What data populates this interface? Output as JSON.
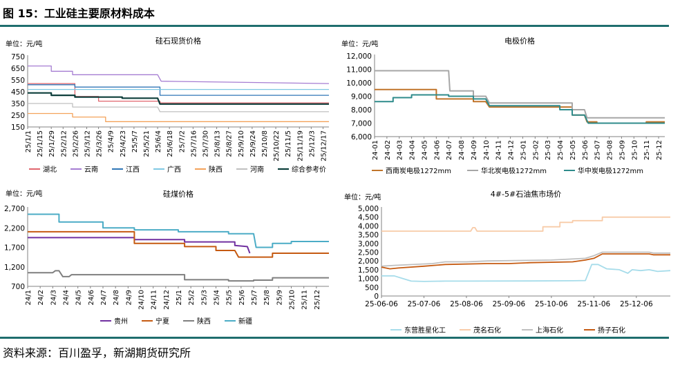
{
  "figure_title": "图 15：工业硅主要原材料成本",
  "source": "资料来源：百川盈孚，新湖期货研究所",
  "colors": {
    "rule": "#1f6e6e"
  },
  "chart_data": [
    {
      "id": "silicon-ore",
      "type": "line",
      "title": "硅石现货价格",
      "unit": "单位：元/吨",
      "ylim": [
        150,
        750
      ],
      "yticks": [
        150,
        250,
        350,
        450,
        550,
        650,
        750
      ],
      "xticks": [
        "25/1/1",
        "25/1/15",
        "25/1/29",
        "25/2/12",
        "25/2/26",
        "25/3/12",
        "25/3/26",
        "25/4/9",
        "25/4/23",
        "25/5/7",
        "25/5/21",
        "25/6/4",
        "25/6/18",
        "25/7/2",
        "25/7/16",
        "25/7/30",
        "25/8/13",
        "25/8/27",
        "25/9/10",
        "25/9/24",
        "25/10/8",
        "25/10/22",
        "25/11/5",
        "25/11/19",
        "25/12/3",
        "25/12/17"
      ],
      "xrange": [
        0,
        25.5
      ],
      "legend_position": "bottom",
      "series": [
        {
          "name": "湖北",
          "color": "#e0646c",
          "width": 1.3,
          "points": [
            [
              0,
              520
            ],
            [
              4,
              520
            ],
            [
              4,
              410
            ],
            [
              6,
              410
            ],
            [
              6,
              370
            ],
            [
              11.2,
              370
            ],
            [
              11.2,
              355
            ],
            [
              25.5,
              355
            ]
          ]
        },
        {
          "name": "云南",
          "color": "#a57cd2",
          "width": 1.3,
          "points": [
            [
              0,
              670
            ],
            [
              2,
              670
            ],
            [
              2,
              625
            ],
            [
              3.8,
              625
            ],
            [
              3.8,
              595
            ],
            [
              11,
              595
            ],
            [
              11.3,
              540
            ],
            [
              25.5,
              520
            ]
          ]
        },
        {
          "name": "江西",
          "color": "#2e75b6",
          "width": 1.3,
          "points": [
            [
              0,
              510
            ],
            [
              4,
              510
            ],
            [
              4,
              490
            ],
            [
              11.2,
              490
            ],
            [
              11.2,
              420
            ],
            [
              25.5,
              420
            ]
          ]
        },
        {
          "name": "广西",
          "color": "#7ec8e3",
          "width": 1.3,
          "points": [
            [
              0,
              470
            ],
            [
              25.5,
              470
            ]
          ]
        },
        {
          "name": "陕西",
          "color": "#f4a259",
          "width": 1.3,
          "points": [
            [
              0,
              265
            ],
            [
              3.8,
              265
            ],
            [
              3.8,
              235
            ],
            [
              6.6,
              235
            ],
            [
              6.6,
              195
            ],
            [
              25.5,
              195
            ]
          ]
        },
        {
          "name": "河南",
          "color": "#bfbfbf",
          "width": 1.3,
          "points": [
            [
              0,
              350
            ],
            [
              3.8,
              350
            ],
            [
              3.8,
              320
            ],
            [
              11,
              320
            ],
            [
              11.2,
              280
            ],
            [
              25.5,
              280
            ]
          ]
        },
        {
          "name": "综合参考价",
          "color": "#0b3d3a",
          "width": 2.2,
          "points": [
            [
              0,
              440
            ],
            [
              2,
              440
            ],
            [
              2,
              420
            ],
            [
              4,
              420
            ],
            [
              4,
              405
            ],
            [
              8,
              405
            ],
            [
              8,
              395
            ],
            [
              11,
              395
            ],
            [
              11.2,
              345
            ],
            [
              25.5,
              345
            ]
          ]
        }
      ]
    },
    {
      "id": "electrode",
      "type": "line",
      "title": "电极价格",
      "unit": "单位：元/吨",
      "ylim": [
        6000,
        12000
      ],
      "yticks": [
        6000,
        7000,
        8000,
        9000,
        10000,
        11000,
        12000
      ],
      "xticks": [
        "24-01",
        "24-02",
        "24-03",
        "24-04",
        "24-05",
        "24-06",
        "24-07",
        "24-08",
        "24-09",
        "24-10",
        "24-11",
        "24-12",
        "25-01",
        "25-02",
        "25-03",
        "25-04",
        "25-05",
        "25-06",
        "25-07",
        "25-08",
        "25-09",
        "25-10",
        "25-11",
        "25-12"
      ],
      "xrange": [
        0,
        23.5
      ],
      "legend_position": "bottom",
      "series": [
        {
          "name": "西南炭电极1272mm",
          "color": "#c0742a",
          "width": 2,
          "points": [
            [
              0,
              9500
            ],
            [
              5,
              9500
            ],
            [
              5,
              8800
            ],
            [
              8,
              8800
            ],
            [
              8,
              8600
            ],
            [
              9,
              8600
            ],
            [
              9.3,
              8200
            ],
            [
              16,
              8200
            ],
            [
              16,
              7600
            ],
            [
              17,
              7600
            ],
            [
              17.2,
              7100
            ],
            [
              18,
              7100
            ],
            [
              18,
              7000
            ],
            [
              22,
              7000
            ],
            [
              22,
              7100
            ],
            [
              23.5,
              7100
            ]
          ]
        },
        {
          "name": "华北炭电极1272mm",
          "color": "#a6a6a6",
          "width": 2,
          "points": [
            [
              0,
              10900
            ],
            [
              6,
              10900
            ],
            [
              6.1,
              9400
            ],
            [
              8,
              9400
            ],
            [
              8,
              9000
            ],
            [
              9,
              9000
            ],
            [
              9.3,
              8500
            ],
            [
              16,
              8500
            ],
            [
              16,
              8000
            ],
            [
              17,
              8000
            ],
            [
              17.2,
              7400
            ],
            [
              23.5,
              7400
            ]
          ]
        },
        {
          "name": "华中炭电极1272mm",
          "color": "#2e8b8b",
          "width": 2,
          "points": [
            [
              0,
              8600
            ],
            [
              1.5,
              8600
            ],
            [
              1.5,
              8900
            ],
            [
              3,
              8900
            ],
            [
              3,
              9100
            ],
            [
              6,
              9100
            ],
            [
              6,
              9000
            ],
            [
              8,
              9000
            ],
            [
              8,
              8800
            ],
            [
              9,
              8800
            ],
            [
              9.3,
              8300
            ],
            [
              15,
              8300
            ],
            [
              15,
              8000
            ],
            [
              16,
              8000
            ],
            [
              16,
              7600
            ],
            [
              17,
              7600
            ],
            [
              17.3,
              7000
            ],
            [
              23.5,
              7000
            ]
          ]
        }
      ]
    },
    {
      "id": "coal",
      "type": "line",
      "title": "硅煤价格",
      "unit": "单位：元/吨",
      "ylim": [
        700,
        2700
      ],
      "yticks": [
        700,
        1200,
        1700,
        2200,
        2700
      ],
      "xticks": [
        "24/1",
        "24/2",
        "24/3",
        "24/4",
        "24/5",
        "24/6",
        "24/7",
        "24/8",
        "24/9",
        "24/10",
        "24/11",
        "24/12",
        "25/1",
        "25/2",
        "25/3",
        "25/4",
        "25/5",
        "25/6",
        "25/7",
        "25/8",
        "25/9",
        "25/10",
        "25/11",
        "25/12"
      ],
      "xrange": [
        0,
        24
      ],
      "legend_position": "bottom",
      "series": [
        {
          "name": "贵州",
          "color": "#7030a0",
          "width": 2,
          "points": [
            [
              0,
              1950
            ],
            [
              8.5,
              1950
            ],
            [
              8.5,
              1900
            ],
            [
              12.5,
              1900
            ],
            [
              12.5,
              1840
            ],
            [
              16.5,
              1840
            ],
            [
              16.5,
              1750
            ],
            [
              17.5,
              1720
            ],
            [
              17.7,
              1550
            ]
          ]
        },
        {
          "name": "宁夏",
          "color": "#c55a11",
          "width": 2,
          "points": [
            [
              0,
              2100
            ],
            [
              8.5,
              2100
            ],
            [
              8.5,
              1800
            ],
            [
              12.5,
              1800
            ],
            [
              12.5,
              1720
            ],
            [
              15,
              1720
            ],
            [
              15,
              1620
            ],
            [
              16.5,
              1620
            ],
            [
              16.8,
              1450
            ],
            [
              19.5,
              1450
            ],
            [
              19.5,
              1550
            ],
            [
              24,
              1550
            ]
          ]
        },
        {
          "name": "陕西",
          "color": "#7f7f7f",
          "width": 2,
          "points": [
            [
              0,
              1050
            ],
            [
              2,
              1050
            ],
            [
              2.2,
              1100
            ],
            [
              2.5,
              1100
            ],
            [
              2.8,
              950
            ],
            [
              3.3,
              950
            ],
            [
              3.5,
              1000
            ],
            [
              12.5,
              1000
            ],
            [
              12.5,
              870
            ],
            [
              16,
              870
            ],
            [
              16,
              840
            ],
            [
              18,
              840
            ],
            [
              18,
              860
            ],
            [
              19.5,
              860
            ],
            [
              19.5,
              920
            ],
            [
              24,
              920
            ]
          ]
        },
        {
          "name": "新疆",
          "color": "#4bacc6",
          "width": 2,
          "points": [
            [
              0,
              2550
            ],
            [
              2.5,
              2550
            ],
            [
              2.5,
              2350
            ],
            [
              6,
              2350
            ],
            [
              6,
              2200
            ],
            [
              8.5,
              2200
            ],
            [
              8.5,
              2150
            ],
            [
              12,
              2150
            ],
            [
              12,
              2100
            ],
            [
              16,
              2100
            ],
            [
              16,
              2050
            ],
            [
              18,
              2050
            ],
            [
              18.2,
              1700
            ],
            [
              19.5,
              1700
            ],
            [
              19.5,
              1800
            ],
            [
              21,
              1800
            ],
            [
              21,
              1850
            ],
            [
              24,
              1850
            ]
          ]
        }
      ]
    },
    {
      "id": "petcoke",
      "type": "line",
      "title": "4#-5#石油焦市场价",
      "unit": "单位：元/吨",
      "ylim": [
        0,
        5000
      ],
      "yticks": [
        0,
        500,
        1000,
        1500,
        2000,
        2500,
        3000,
        3500,
        4000,
        4500,
        5000
      ],
      "xticks": [
        "25-06-06",
        "25-07-06",
        "25-08-06",
        "25-09-06",
        "25-10-06",
        "25-11-06",
        "25-12-06"
      ],
      "xrange": [
        0,
        6.8
      ],
      "legend_position": "bottom",
      "series": [
        {
          "name": "东营胜星化工",
          "color": "#a6dcea",
          "width": 1.8,
          "points": [
            [
              0,
              1150
            ],
            [
              0.3,
              1150
            ],
            [
              0.5,
              1000
            ],
            [
              0.7,
              850
            ],
            [
              1,
              830
            ],
            [
              1.5,
              850
            ],
            [
              2,
              850
            ],
            [
              3.5,
              860
            ],
            [
              4.5,
              870
            ],
            [
              4.8,
              880
            ],
            [
              4.95,
              1800
            ],
            [
              5.1,
              1800
            ],
            [
              5.3,
              1550
            ],
            [
              5.6,
              1500
            ],
            [
              5.8,
              1300
            ],
            [
              5.9,
              1500
            ],
            [
              6.1,
              1450
            ],
            [
              6.3,
              1500
            ],
            [
              6.5,
              1400
            ],
            [
              6.8,
              1450
            ]
          ]
        },
        {
          "name": "茂名石化",
          "color": "#f8cba8",
          "width": 1.8,
          "points": [
            [
              0,
              3700
            ],
            [
              2.1,
              3700
            ],
            [
              2.15,
              3900
            ],
            [
              2.2,
              3900
            ],
            [
              2.25,
              3700
            ],
            [
              3.8,
              3700
            ],
            [
              3.8,
              3950
            ],
            [
              4.2,
              3950
            ],
            [
              4.2,
              4200
            ],
            [
              4.5,
              4200
            ],
            [
              4.5,
              4300
            ],
            [
              5.2,
              4300
            ],
            [
              5.2,
              4500
            ],
            [
              6.8,
              4500
            ]
          ]
        },
        {
          "name": "上海石化",
          "color": "#bfbfbf",
          "width": 1.8,
          "points": [
            [
              0,
              1700
            ],
            [
              0.3,
              1750
            ],
            [
              1.2,
              1850
            ],
            [
              1.5,
              1950
            ],
            [
              2,
              1950
            ],
            [
              2.5,
              2000
            ],
            [
              4,
              2050
            ],
            [
              4.8,
              2150
            ],
            [
              5,
              2300
            ],
            [
              5.2,
              2500
            ],
            [
              6.3,
              2500
            ],
            [
              6.4,
              2450
            ],
            [
              6.8,
              2450
            ]
          ]
        },
        {
          "name": "扬子石化",
          "color": "#c55a11",
          "width": 1.8,
          "points": [
            [
              0,
              1650
            ],
            [
              0.2,
              1550
            ],
            [
              0.4,
              1600
            ],
            [
              1,
              1700
            ],
            [
              1.5,
              1800
            ],
            [
              2.5,
              1850
            ],
            [
              3,
              1850
            ],
            [
              3.5,
              1900
            ],
            [
              4.5,
              1950
            ],
            [
              4.8,
              2050
            ],
            [
              5,
              2150
            ],
            [
              5.2,
              2400
            ],
            [
              6.3,
              2400
            ],
            [
              6.4,
              2350
            ],
            [
              6.8,
              2350
            ]
          ]
        }
      ]
    }
  ]
}
